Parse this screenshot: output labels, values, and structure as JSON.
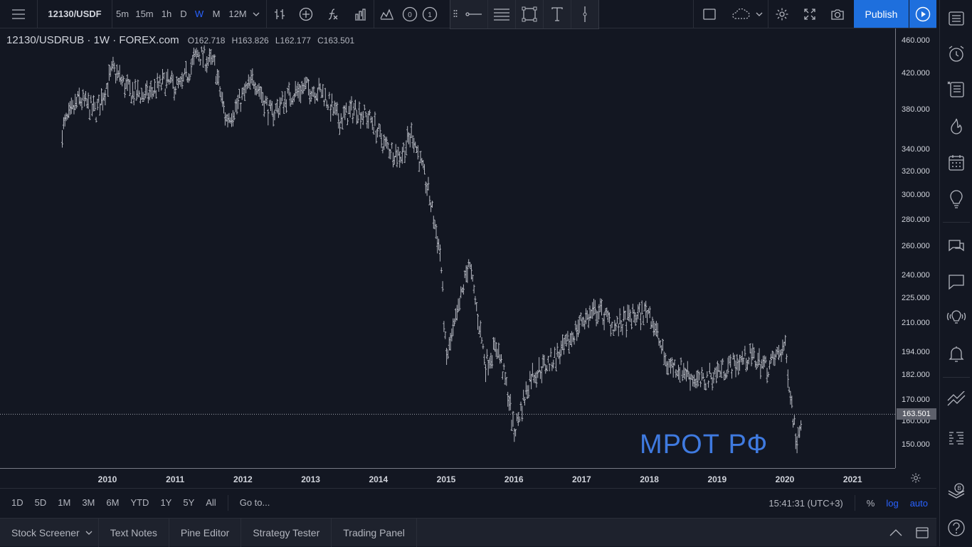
{
  "toolbar": {
    "symbol": "12130/USDF",
    "intervals": [
      "5m",
      "15m",
      "1h",
      "D",
      "W",
      "M",
      "12M"
    ],
    "active_interval": "W",
    "publish_label": "Publish",
    "accent_color": "#1e6fdd",
    "compare_icons": [
      "O",
      "I"
    ]
  },
  "legend": {
    "symbol": "12130/USDRUB",
    "interval": "1W",
    "exchange": "FOREX.com",
    "open": "O162.718",
    "high": "H163.826",
    "low": "L162.177",
    "close": "C163.501"
  },
  "price_axis": {
    "labels": [
      "460.000",
      "420.000",
      "380.000",
      "340.000",
      "320.000",
      "300.000",
      "280.000",
      "260.000",
      "240.000",
      "225.000",
      "210.000",
      "194.000",
      "182.000",
      "170.000",
      "160.000",
      "150.000"
    ],
    "current_price": "163.501",
    "scale": "log"
  },
  "time_axis": {
    "labels": [
      "2010",
      "2011",
      "2012",
      "2013",
      "2014",
      "2015",
      "2016",
      "2017",
      "2018",
      "2019",
      "2020",
      "2021"
    ]
  },
  "watermark": "МРОТ РФ",
  "bottom": {
    "ranges": [
      "1D",
      "5D",
      "1M",
      "3M",
      "6M",
      "YTD",
      "1Y",
      "5Y",
      "All"
    ],
    "goto": "Go to...",
    "clock": "15:41:31 (UTC+3)",
    "percent": "%",
    "log": "log",
    "auto": "auto"
  },
  "panel_tabs": [
    "Stock Screener",
    "Text Notes",
    "Pine Editor",
    "Strategy Tester",
    "Trading Panel"
  ],
  "chart_data": {
    "type": "line",
    "title": "",
    "xlabel": "",
    "ylabel": "",
    "yscale": "log",
    "ylim": [
      140,
      470
    ],
    "x": [
      "2009-05",
      "2009-08",
      "2009-11",
      "2010-02",
      "2010-05",
      "2010-08",
      "2010-11",
      "2011-02",
      "2011-05",
      "2011-08",
      "2011-10",
      "2011-12",
      "2012-03",
      "2012-06",
      "2012-09",
      "2012-12",
      "2013-03",
      "2013-06",
      "2013-09",
      "2013-12",
      "2014-02",
      "2014-05",
      "2014-07",
      "2014-10",
      "2014-12",
      "2015-01",
      "2015-03",
      "2015-05",
      "2015-08",
      "2015-10",
      "2015-12",
      "2016-01",
      "2016-04",
      "2016-07",
      "2016-10",
      "2017-01",
      "2017-04",
      "2017-07",
      "2017-10",
      "2018-01",
      "2018-04",
      "2018-07",
      "2018-10",
      "2019-01",
      "2019-04",
      "2019-07",
      "2019-10",
      "2020-01",
      "2020-03",
      "2020-04"
    ],
    "values": [
      360,
      392,
      378,
      425,
      400,
      395,
      410,
      405,
      445,
      430,
      370,
      385,
      415,
      375,
      395,
      405,
      400,
      370,
      382,
      368,
      345,
      335,
      357,
      300,
      255,
      190,
      215,
      250,
      188,
      198,
      173,
      155,
      182,
      188,
      196,
      212,
      218,
      208,
      214,
      218,
      188,
      185,
      178,
      184,
      188,
      192,
      186,
      198,
      152,
      163.5
    ]
  }
}
